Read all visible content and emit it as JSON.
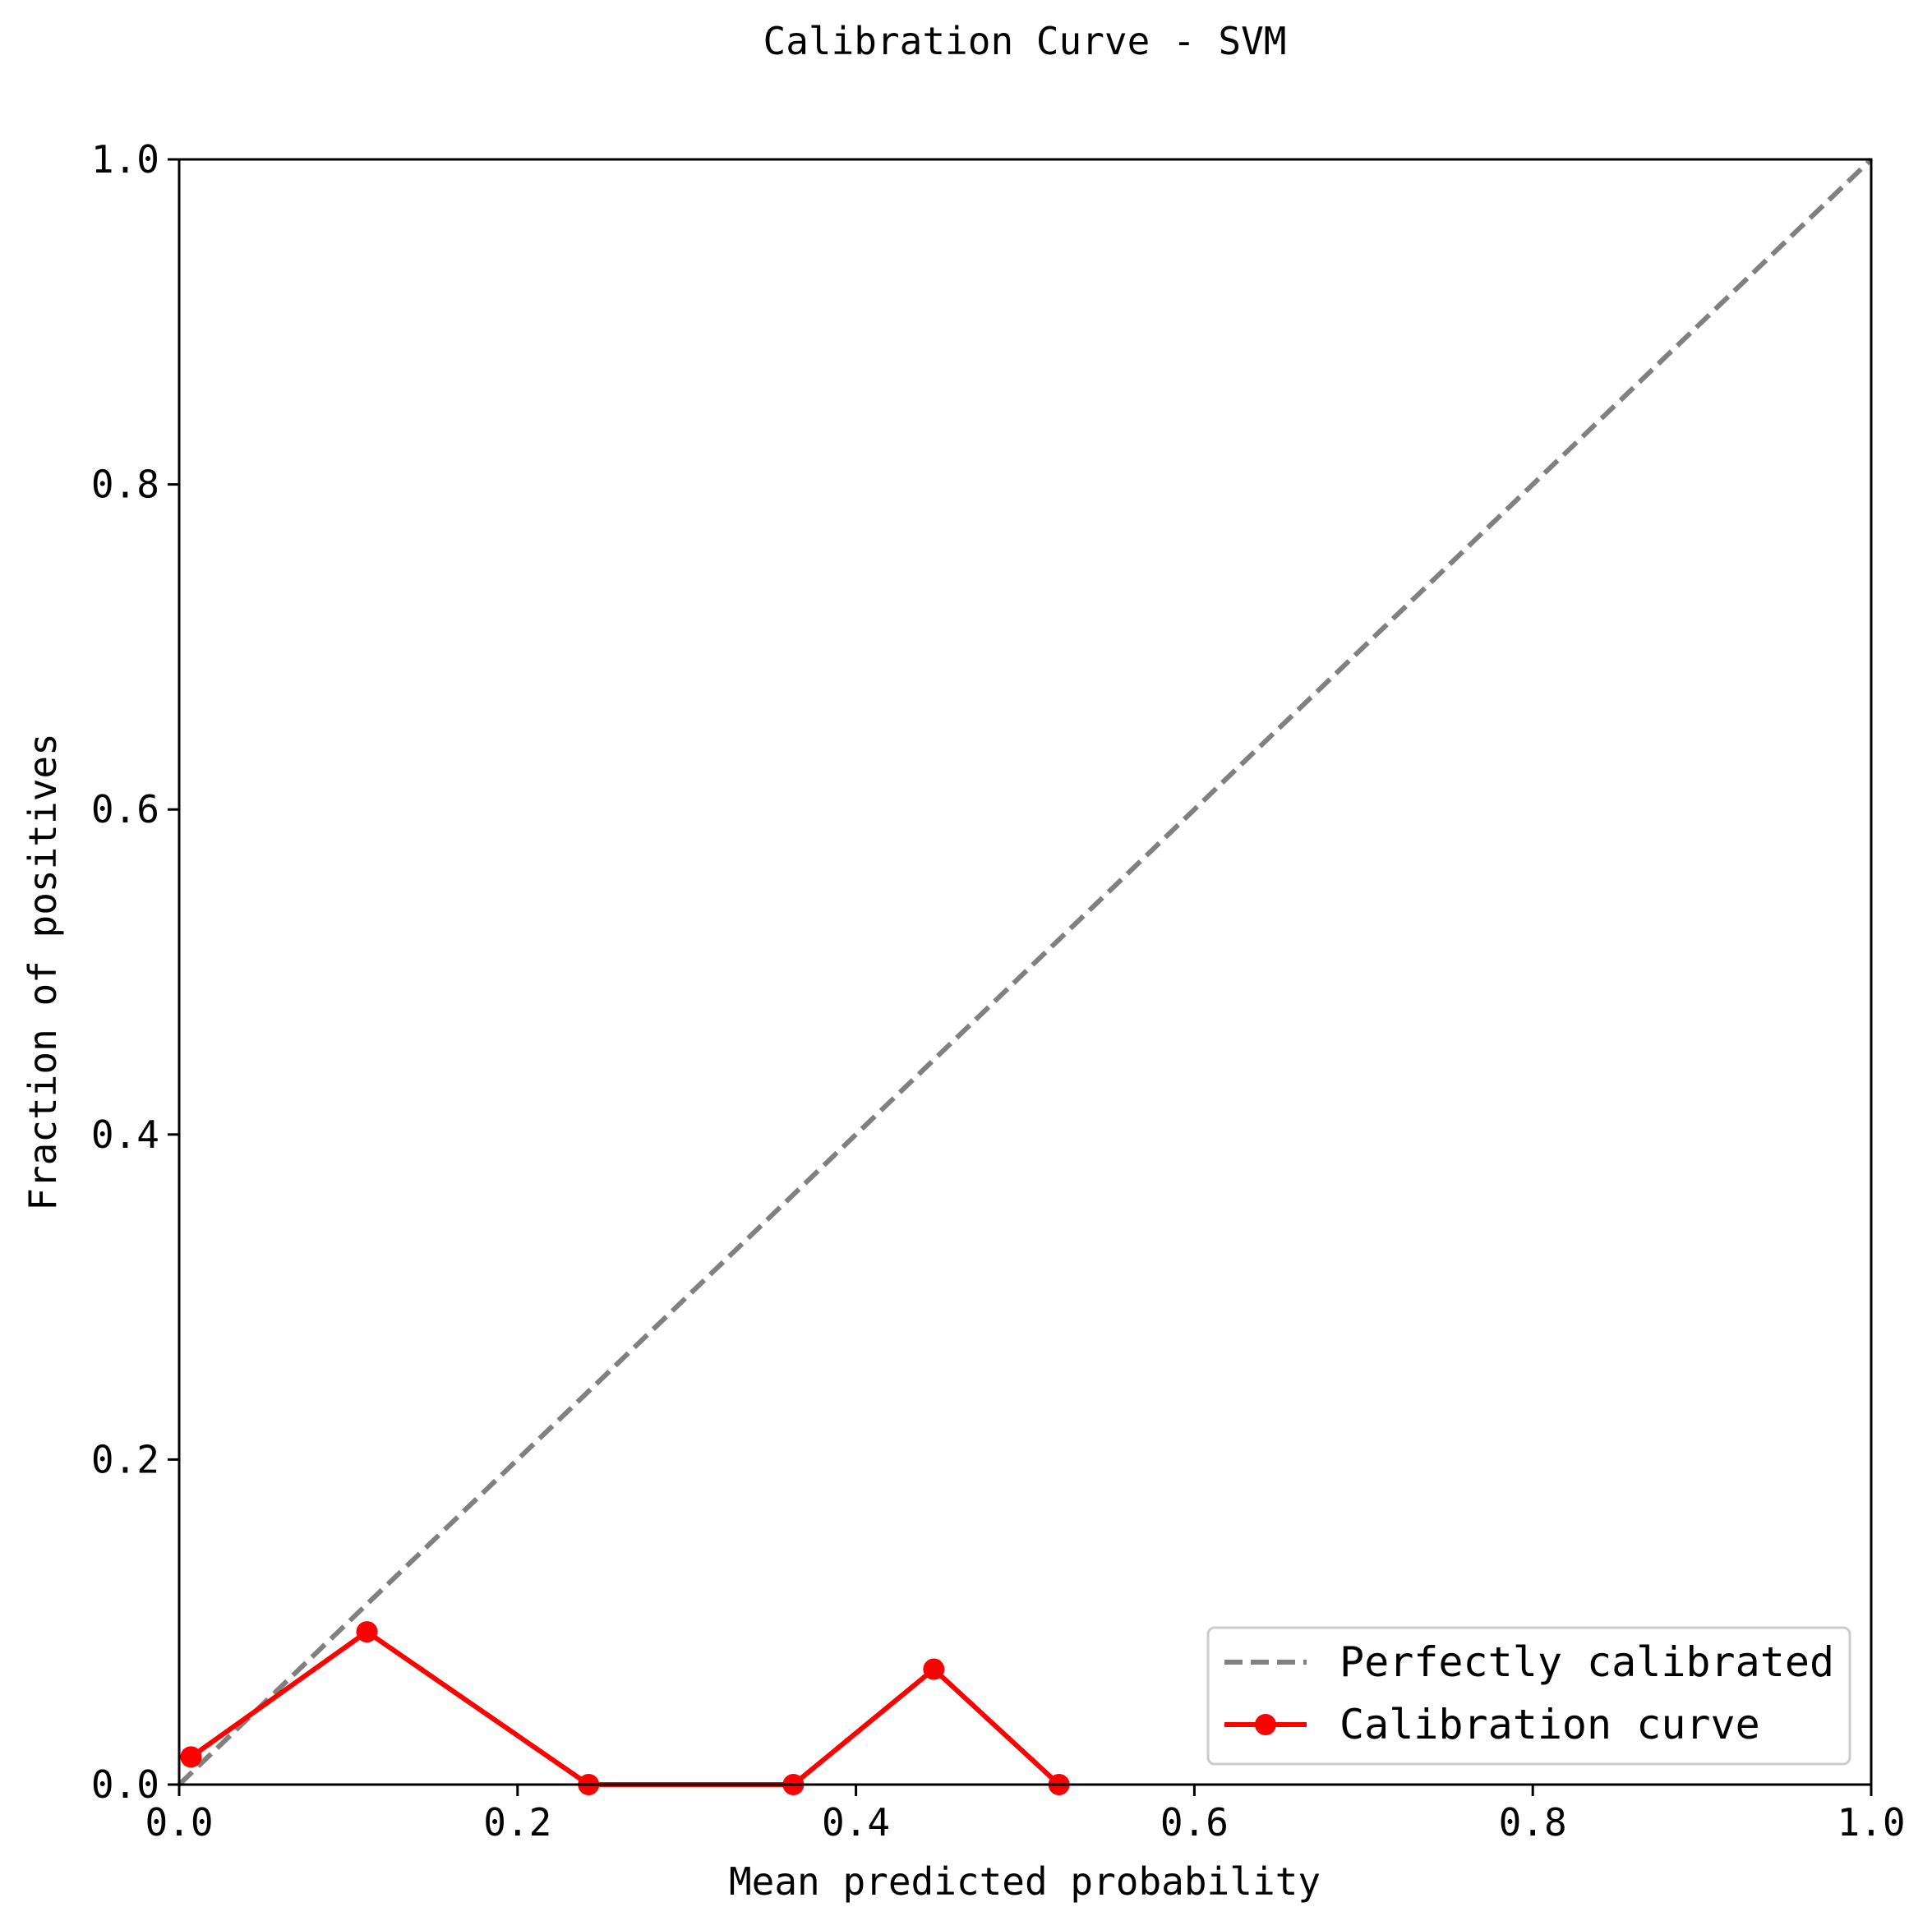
{
  "chart_data": {
    "type": "line",
    "title": "Calibration Curve - SVM",
    "xlabel": "Mean predicted probability",
    "ylabel": "Fraction of positives",
    "xlim": [
      0.0,
      1.0
    ],
    "ylim": [
      0.0,
      1.0
    ],
    "xticks": [
      "0.0",
      "0.2",
      "0.4",
      "0.6",
      "0.8",
      "1.0"
    ],
    "yticks": [
      "0.0",
      "0.2",
      "0.4",
      "0.6",
      "0.8",
      "1.0"
    ],
    "grid": false,
    "legend_position": "lower-right",
    "series": [
      {
        "name": "Perfectly calibrated",
        "style": "dashed",
        "color": "#808080",
        "marker": "none",
        "x": [
          0.0,
          1.0
        ],
        "y": [
          0.0,
          1.0
        ]
      },
      {
        "name": "Calibration curve",
        "style": "solid",
        "color": "#ff0000",
        "marker": "circle",
        "x": [
          0.007,
          0.111,
          0.242,
          0.363,
          0.446,
          0.52
        ],
        "y": [
          0.017,
          0.094,
          0.0,
          0.0,
          0.071,
          0.0
        ]
      }
    ]
  }
}
